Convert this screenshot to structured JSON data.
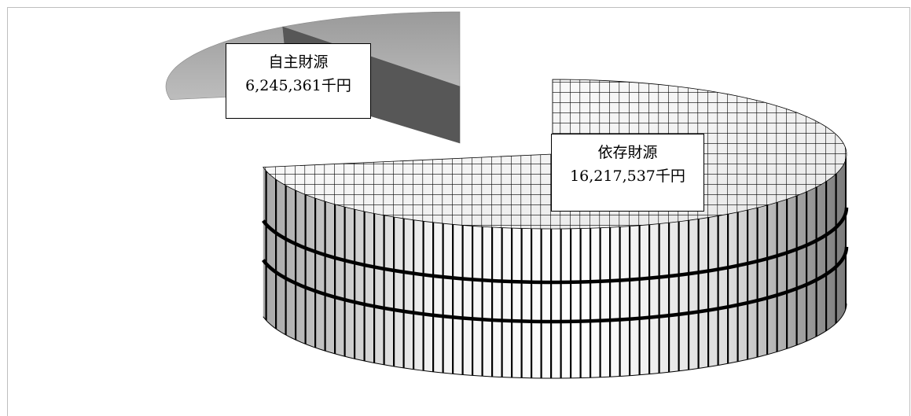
{
  "chart_data": {
    "type": "pie",
    "title": "",
    "colors": {
      "own": "#6e6e6e",
      "dependent": "#f2f2f2"
    },
    "series": [
      {
        "name": "",
        "slices": [
          {
            "label": "自主財源",
            "value": 6245361,
            "value_text": "6,245,361千円",
            "style": "solid-gray",
            "exploded": true
          },
          {
            "label": "依存財源",
            "value": 16217537,
            "value_text": "16,217,537千円",
            "style": "grid-pattern",
            "exploded": false
          }
        ]
      }
    ],
    "legend": "none"
  }
}
